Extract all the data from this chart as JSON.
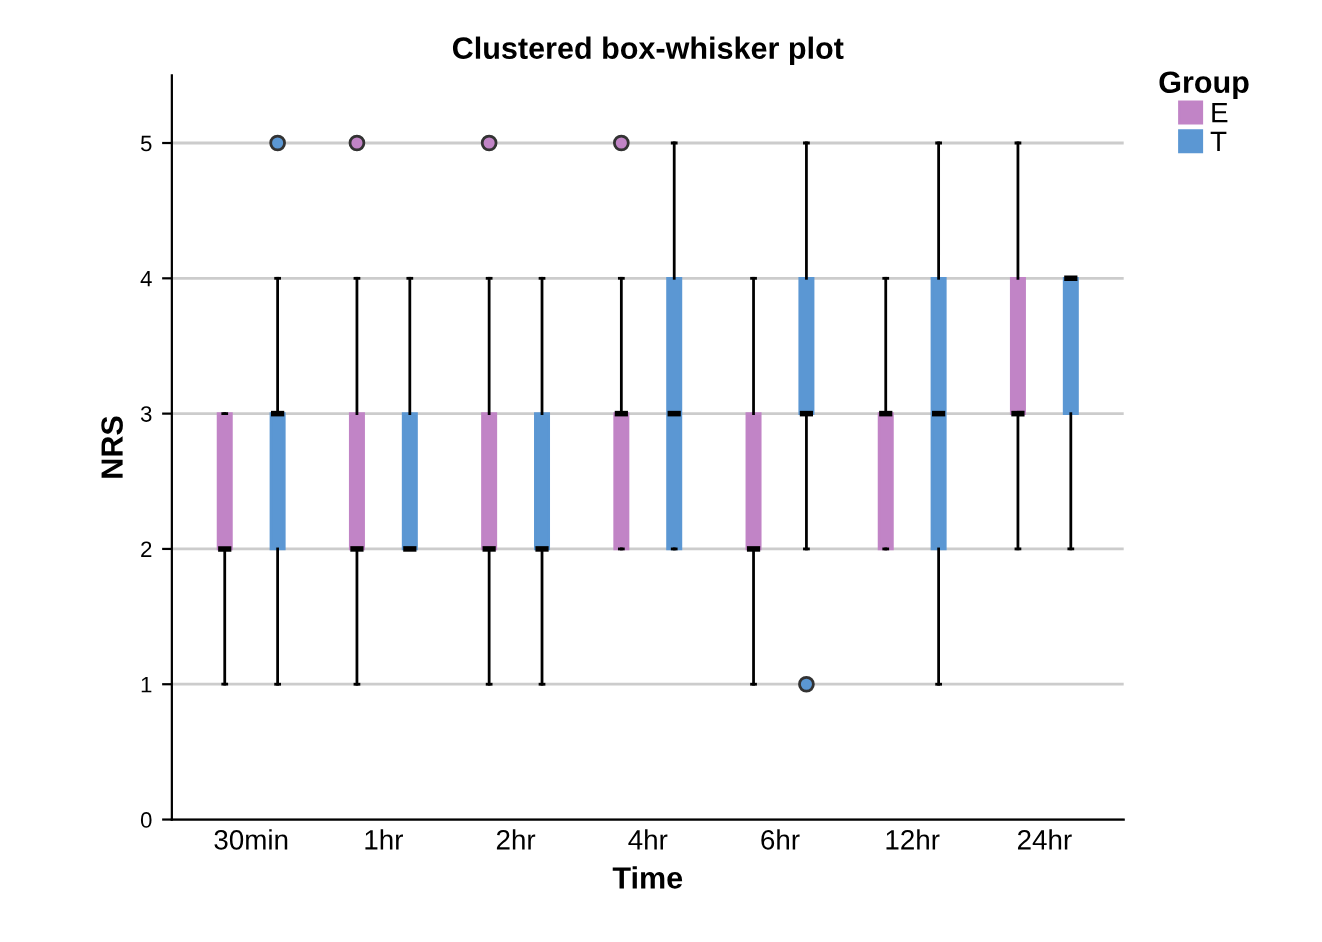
{
  "chart_data": {
    "type": "box",
    "title": "Clustered box-whisker plot",
    "xlabel": "Time",
    "ylabel": "NRS",
    "legend_title": "Group",
    "legend": "top right",
    "grid": "y",
    "categories": [
      "30min",
      "1hr",
      "2hr",
      "4hr",
      "6hr",
      "12hr",
      "24hr"
    ],
    "ylim": [
      0,
      5.5
    ],
    "yticks": [
      0,
      1,
      2,
      3,
      4,
      5
    ],
    "series": [
      {
        "name": "E",
        "color": "#c184c6",
        "boxes": [
          {
            "low": 1,
            "q1": 2,
            "median": 2,
            "q3": 3,
            "high": 3
          },
          {
            "low": 1,
            "q1": 2,
            "median": 2,
            "q3": 3,
            "high": 4,
            "outliers": [
              5
            ]
          },
          {
            "low": 1,
            "q1": 2,
            "median": 2,
            "q3": 3,
            "high": 4,
            "outliers": [
              5
            ]
          },
          {
            "low": 2,
            "q1": 2,
            "median": 3,
            "q3": 3,
            "high": 4,
            "outliers": [
              5
            ]
          },
          {
            "low": 1,
            "q1": 2,
            "median": 2,
            "q3": 3,
            "high": 4
          },
          {
            "low": 2,
            "q1": 2,
            "median": 3,
            "q3": 3,
            "high": 4
          },
          {
            "low": 2,
            "q1": 3,
            "median": 3,
            "q3": 4,
            "high": 5
          }
        ]
      },
      {
        "name": "T",
        "color": "#5b97d3",
        "boxes": [
          {
            "low": 1,
            "q1": 2,
            "median": 3,
            "q3": 3,
            "high": 4,
            "outliers": [
              5
            ]
          },
          {
            "low": 2,
            "q1": 2,
            "median": 2,
            "q3": 3,
            "high": 4
          },
          {
            "low": 1,
            "q1": 2,
            "median": 2,
            "q3": 3,
            "high": 4
          },
          {
            "low": 2,
            "q1": 2,
            "median": 3,
            "q3": 4,
            "high": 5
          },
          {
            "low": 2,
            "q1": 3,
            "median": 3,
            "q3": 4,
            "high": 5,
            "outliers": [
              1
            ]
          },
          {
            "low": 1,
            "q1": 2,
            "median": 3,
            "q3": 4,
            "high": 5
          },
          {
            "low": 2,
            "q1": 3,
            "median": 4,
            "q3": 4,
            "high": 4
          }
        ]
      }
    ]
  }
}
